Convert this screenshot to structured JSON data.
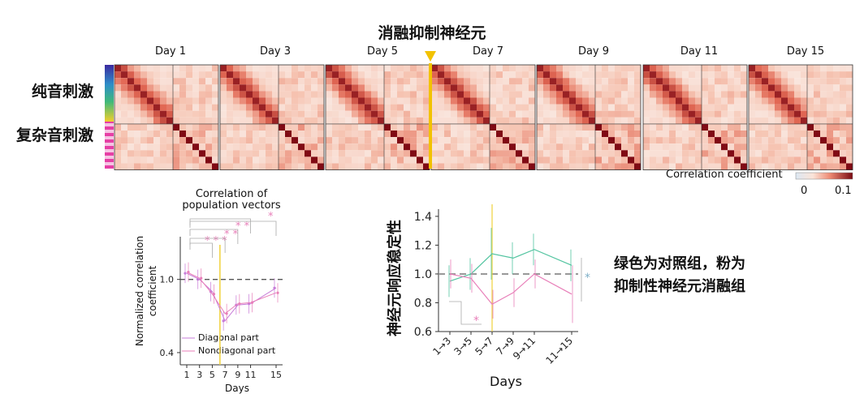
{
  "title": "消融抑制神经元",
  "days": [
    "Day 1",
    "Day 3",
    "Day 5",
    "Day 7",
    "Day 9",
    "Day 11",
    "Day 15"
  ],
  "row_labels": {
    "pure_tone": "纯音刺激",
    "complex_tone": "复杂音刺激"
  },
  "colorbar": {
    "label": "Correlation coefficient",
    "min": "0",
    "max": "0.1",
    "low_color": "#e6eef7",
    "high_color": "#7a0a12"
  },
  "colors": {
    "pink": "#e87fb9",
    "green": "#52c4a0",
    "yellow": "#f0d23c",
    "arrow": "#f2c200"
  },
  "left_chart": {
    "title_line1": "Correlation of",
    "title_line2": "population vectors",
    "ylabel_line1": "Normalized correlation",
    "ylabel_line2": "coefficient",
    "xlabel": "Days",
    "legend": [
      "Diagonal part",
      "Nondiagonal part"
    ],
    "significance": [
      "* *",
      "* *",
      "* * *",
      "* *",
      "*"
    ]
  },
  "right_chart": {
    "ylabel": "神经元响应稳定性",
    "xlabel": "Days",
    "star": "*"
  },
  "annotation": {
    "line1": "绿色为对照组，粉为",
    "line2": "抑制性神经元消融组"
  },
  "chart_data": [
    {
      "type": "line",
      "title": "Correlation of population vectors",
      "xlabel": "Days",
      "ylabel": "Normalized correlation coefficient",
      "x": [
        1,
        3,
        5,
        7,
        9,
        11,
        15
      ],
      "xticks": [
        "1",
        "3",
        "5",
        "7",
        "9",
        "11",
        "15"
      ],
      "yticks": [
        "0.4",
        "1.0"
      ],
      "ylim": [
        0.3,
        1.35
      ],
      "reference_line": 1.0,
      "series": [
        {
          "name": "Diagonal part",
          "values": [
            1.05,
            1.0,
            0.9,
            0.66,
            0.79,
            0.8,
            0.93
          ]
        },
        {
          "name": "Nondiagonal part",
          "values": [
            1.06,
            1.01,
            0.88,
            0.72,
            0.8,
            0.81,
            0.89
          ]
        }
      ]
    },
    {
      "type": "line",
      "xlabel": "Days",
      "ylabel": "神经元响应稳定性",
      "categories": [
        "1→3",
        "3→5",
        "5→7",
        "7→9",
        "9→11",
        "11→15"
      ],
      "yticks": [
        "0.6",
        "0.8",
        "1.0",
        "1.2",
        "1.4"
      ],
      "ylim": [
        0.6,
        1.45
      ],
      "reference_line": 1.0,
      "series": [
        {
          "name": "对照组",
          "values": [
            0.95,
            1.0,
            1.14,
            1.11,
            1.17,
            1.06
          ]
        },
        {
          "name": "抑制性神经元消融组",
          "values": [
            1.0,
            0.97,
            0.79,
            0.87,
            1.0,
            0.86
          ]
        }
      ]
    }
  ]
}
